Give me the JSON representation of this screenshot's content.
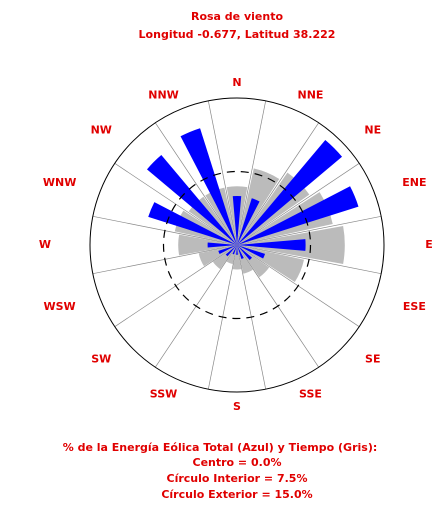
{
  "chart_data": {
    "type": "windrose",
    "title": "Rosa de viento",
    "subtitle": "Longitud -0.677, Latitud 38.222",
    "categories": [
      "N",
      "NNE",
      "NE",
      "ENE",
      "E",
      "ESE",
      "SE",
      "SSE",
      "S",
      "SSW",
      "SW",
      "WSW",
      "W",
      "WNW",
      "NW",
      "NNW"
    ],
    "series": [
      {
        "color": "#bbbbbb",
        "values": [
          6,
          8,
          9,
          10,
          11,
          7,
          4,
          3,
          2.5,
          2,
          3,
          4,
          6,
          6.5,
          6,
          6
        ]
      },
      {
        "color": "#0000ff",
        "values": [
          5,
          5,
          14,
          13,
          7,
          3,
          2,
          1.5,
          1,
          1,
          1.5,
          2,
          3,
          9.5,
          12,
          12.5
        ]
      }
    ],
    "rlim": [
      0,
      15
    ],
    "rticks": [
      7.5,
      15
    ],
    "notes": [
      "% de la Energía Eólica Total (Azul) y Tiempo (Gris):",
      "Centro = 0.0%",
      "Círculo Interior = 7.5%",
      "Círculo Exterior = 15.0%"
    ]
  }
}
